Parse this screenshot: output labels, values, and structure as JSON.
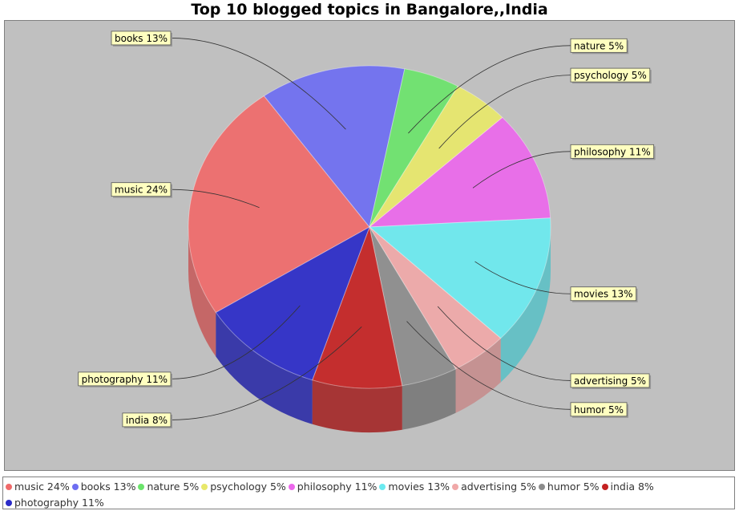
{
  "chart_data": {
    "type": "pie",
    "title": "Top 10 blogged topics in Bangalore,,India",
    "slices": [
      {
        "name": "music",
        "label": "music 24%",
        "value": 24,
        "color": "#f06a6a"
      },
      {
        "name": "books",
        "label": "books 13%",
        "value": 13,
        "color": "#6e6ef2"
      },
      {
        "name": "nature",
        "label": "nature 5%",
        "value": 5,
        "color": "#6be46b"
      },
      {
        "name": "psychology",
        "label": "psychology 5%",
        "value": 5,
        "color": "#e8e86a"
      },
      {
        "name": "philosophy",
        "label": "philosophy 11%",
        "value": 11,
        "color": "#ec68ec"
      },
      {
        "name": "movies",
        "label": "movies 13%",
        "value": 13,
        "color": "#6aeaf0"
      },
      {
        "name": "advertising",
        "label": "advertising 5%",
        "value": 5,
        "color": "#f0a8a8"
      },
      {
        "name": "humor",
        "label": "humor 5%",
        "value": 5,
        "color": "#8c8c8c"
      },
      {
        "name": "india",
        "label": "india 8%",
        "value": 8,
        "color": "#c42222"
      },
      {
        "name": "photography",
        "label": "photography 11%",
        "value": 11,
        "color": "#2a2ac8"
      }
    ],
    "legend_position": "bottom"
  }
}
